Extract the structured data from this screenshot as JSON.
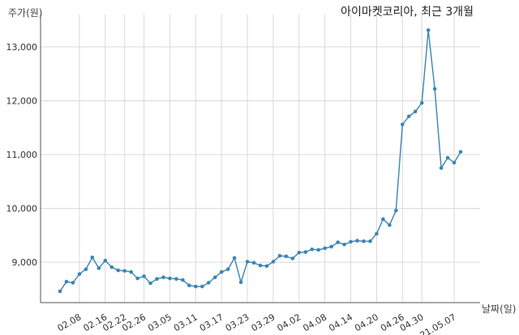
{
  "chart_data": {
    "type": "line",
    "title": "아이마켓코리아, 최근 3개월",
    "ylabel": "주가(원)",
    "xlabel": "날짜(일)",
    "ylim": [
      8250,
      13600
    ],
    "yticks": [
      9000,
      10000,
      11000,
      12000,
      13000
    ],
    "ytick_labels": [
      "9,000",
      "10,000",
      "11,000",
      "12,000",
      "13,000"
    ],
    "xtick_labels": [
      "02.08",
      "02.16",
      "02.22",
      "02.26",
      "03.05",
      "03.11",
      "03.17",
      "03.23",
      "03.29",
      "04.02",
      "04.08",
      "04.14",
      "04.20",
      "04.26",
      "04.30",
      "21.05.07"
    ],
    "xtick_index": [
      3,
      7,
      10,
      13,
      17,
      21,
      25,
      29,
      33,
      37,
      41,
      45,
      49,
      53,
      56,
      61
    ],
    "grid": true,
    "line_color": "#3a85b5",
    "series": [
      {
        "values": [
          8460,
          8640,
          8620,
          8780,
          8870,
          9090,
          8890,
          9030,
          8910,
          8850,
          8840,
          8820,
          8700,
          8740,
          8610,
          8690,
          8720,
          8700,
          8690,
          8670,
          8570,
          8550,
          8550,
          8620,
          8720,
          8820,
          8870,
          9080,
          8630,
          9010,
          8990,
          8940,
          8930,
          9010,
          9120,
          9110,
          9070,
          9180,
          9190,
          9240,
          9230,
          9260,
          9290,
          9370,
          9330,
          9380,
          9400,
          9390,
          9390,
          9530,
          9800,
          9690,
          9960,
          11560,
          11710,
          11800,
          11960,
          13310,
          12220,
          10750,
          10940,
          10850,
          11050
        ]
      }
    ]
  }
}
